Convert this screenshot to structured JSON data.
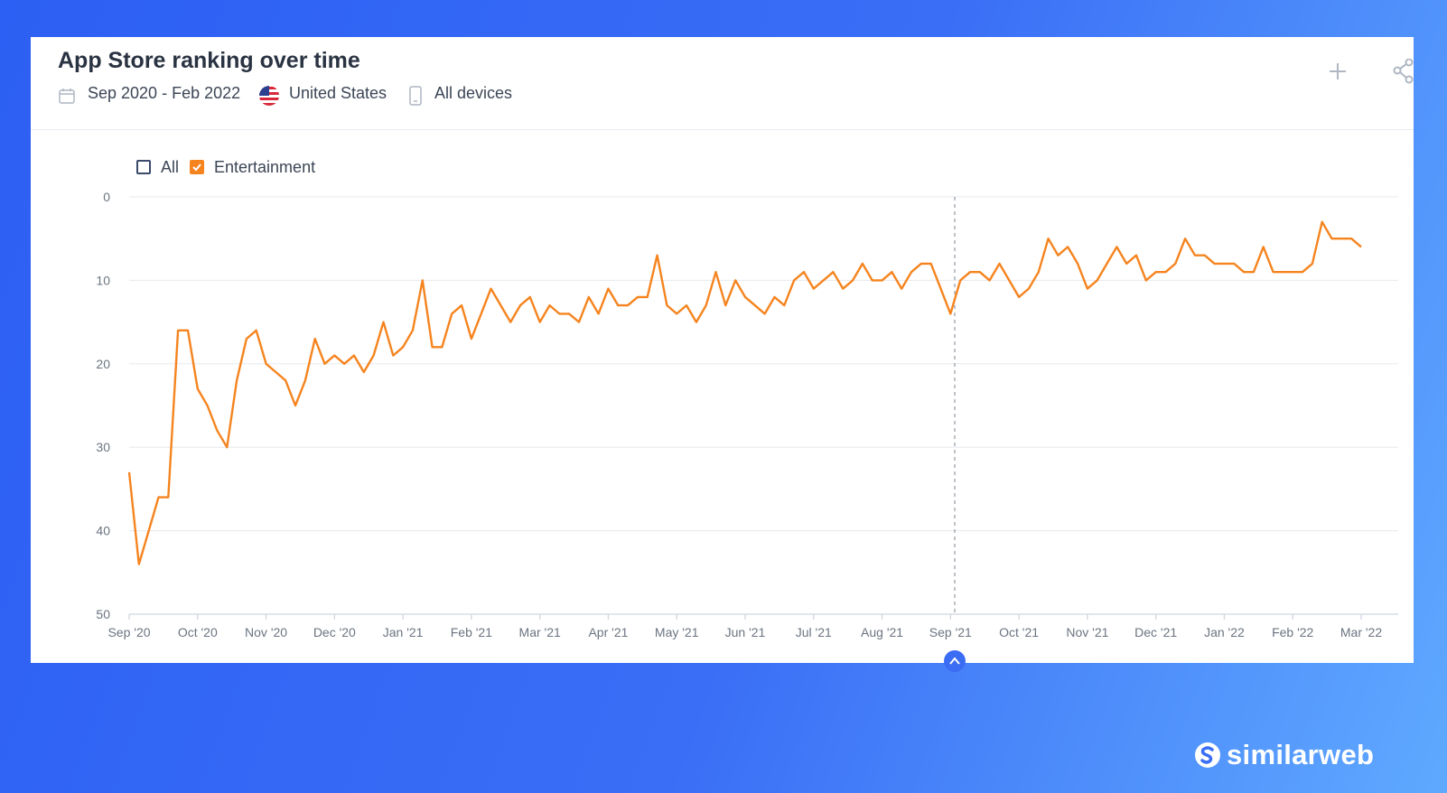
{
  "header": {
    "subtitle": {
      "date_range": "Sep 2020 - Feb 2022",
      "country": "United States",
      "devices": "All devices"
    }
  },
  "brand": "similarweb",
  "chart_data": {
    "type": "line",
    "title": "App Store ranking over time",
    "filters": [
      {
        "name": "All",
        "checked": false,
        "color": "#3a4a6b"
      }
    ],
    "categories": [
      "Sep '20",
      null,
      null,
      null,
      null,
      null,
      null,
      "Oct '20",
      null,
      null,
      null,
      null,
      null,
      null,
      "Nov '20",
      null,
      null,
      null,
      null,
      null,
      null,
      "Dec '20",
      null,
      null,
      null,
      null,
      null,
      null,
      "Jan '21",
      null,
      null,
      null,
      null,
      null,
      null,
      "Feb '21",
      null,
      null,
      null,
      null,
      null,
      null,
      "Mar '21",
      null,
      null,
      null,
      null,
      null,
      null,
      "Apr '21",
      null,
      null,
      null,
      null,
      null,
      null,
      "May '21",
      null,
      null,
      null,
      null,
      null,
      null,
      "Jun '21",
      null,
      null,
      null,
      null,
      null,
      null,
      "Jul '21",
      null,
      null,
      null,
      null,
      null,
      null,
      "Aug '21",
      null,
      null,
      null,
      null,
      null,
      null,
      "Sep '21",
      null,
      null,
      null,
      null,
      null,
      null,
      "Oct '21",
      null,
      null,
      null,
      null,
      null,
      null,
      "Nov '21",
      null,
      null,
      null,
      null,
      null,
      null,
      "Dec '21",
      null,
      null,
      null,
      null,
      null,
      null,
      "Jan '22",
      null,
      null,
      null,
      null,
      null,
      null,
      "Feb '22",
      null,
      null,
      null,
      null,
      null,
      null,
      "Mar '22"
    ],
    "series": [
      {
        "name": "Entertainment",
        "checked": true,
        "color": "#f5841f",
        "values": [
          33,
          44,
          40,
          36,
          36,
          16,
          16,
          23,
          25,
          28,
          30,
          22,
          17,
          16,
          20,
          21,
          22,
          25,
          22,
          17,
          20,
          19,
          20,
          19,
          21,
          19,
          15,
          19,
          18,
          16,
          10,
          18,
          18,
          14,
          13,
          17,
          14,
          11,
          13,
          15,
          13,
          12,
          15,
          13,
          14,
          14,
          15,
          12,
          14,
          11,
          13,
          13,
          12,
          12,
          7,
          13,
          14,
          13,
          15,
          13,
          9,
          13,
          10,
          12,
          13,
          14,
          12,
          13,
          10,
          9,
          11,
          10,
          9,
          11,
          10,
          8,
          10,
          10,
          9,
          11,
          9,
          8,
          8,
          11,
          14,
          10,
          9,
          9,
          10,
          8,
          10,
          12,
          11,
          9,
          5,
          7,
          6,
          8,
          11,
          10,
          8,
          6,
          8,
          7,
          10,
          9,
          9,
          8,
          5,
          7,
          7,
          8,
          8,
          8,
          9,
          9,
          6,
          9,
          9,
          9,
          9,
          8,
          3,
          5,
          5,
          5,
          6
        ]
      }
    ],
    "ylim": [
      50,
      0
    ],
    "yticks": [
      0,
      10,
      20,
      30,
      40,
      50
    ],
    "grid": true
  }
}
